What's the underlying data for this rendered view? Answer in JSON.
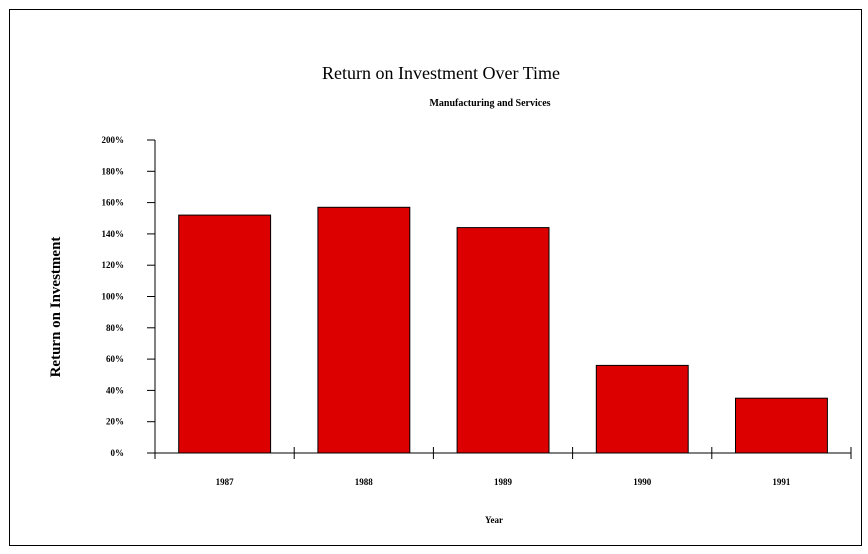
{
  "chart_data": {
    "type": "bar",
    "title": "Return on Investment Over Time",
    "subtitle": "Manufacturing and Services",
    "xlabel": "Year",
    "ylabel": "Return on Investment",
    "categories": [
      "1987",
      "1988",
      "1989",
      "1990",
      "1991"
    ],
    "values": [
      1.52,
      1.57,
      1.44,
      0.56,
      0.35
    ],
    "yticks": [
      0,
      0.2,
      0.4,
      0.6,
      0.8,
      1.0,
      1.2,
      1.4,
      1.6,
      1.8,
      2.0
    ],
    "ytick_labels": [
      "0%",
      "20%",
      "40%",
      "60%",
      "80%",
      "100%",
      "120%",
      "140%",
      "160%",
      "180%",
      "200%"
    ],
    "ylim": [
      0,
      2.0
    ],
    "grid": false,
    "legend": "none",
    "bar_color": "#dd0000",
    "bar_edge_color": "#000000"
  }
}
